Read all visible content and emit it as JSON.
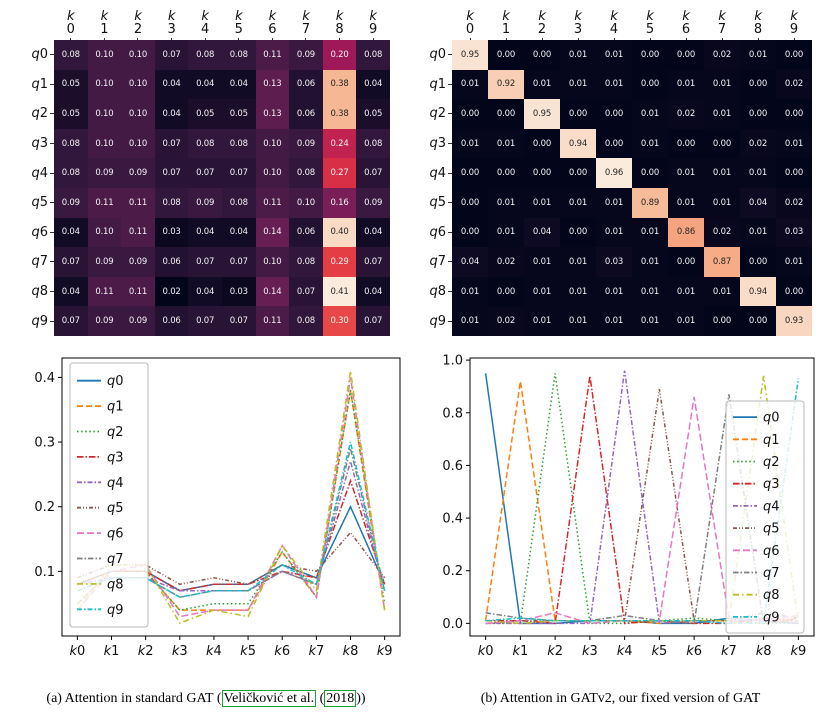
{
  "captions": {
    "a": {
      "prefix": "(a) Attention in standard GAT (",
      "link1": "Veličković et al.",
      "mid": " (",
      "link2": "2018",
      "suffix": "))"
    },
    "b": "(b) Attention in GATv2, our fixed version of GAT"
  },
  "colors": {
    "citation_box": "#17a336",
    "heatmap_low": "#03051a",
    "heatmap_high": "#faebdd"
  },
  "series_styles": [
    {
      "name": "q0",
      "color": "#1f77b4",
      "dash": ""
    },
    {
      "name": "q1",
      "color": "#ff7f0e",
      "dash": "6,3"
    },
    {
      "name": "q2",
      "color": "#2ca02c",
      "dash": "1.5,2.6"
    },
    {
      "name": "q3",
      "color": "#d62728",
      "dash": "6.5,2,1.5,2"
    },
    {
      "name": "q4",
      "color": "#9467bd",
      "dash": "5,2,1.5,2"
    },
    {
      "name": "q5",
      "color": "#8c564b",
      "dash": "4,2,1,2,1,2"
    },
    {
      "name": "q6",
      "color": "#e377c2",
      "dash": "7,3"
    },
    {
      "name": "q7",
      "color": "#7f7f7f",
      "dash": "5.5,2,1.5,2"
    },
    {
      "name": "q8",
      "color": "#bcbd22",
      "dash": "6,3,1.5,3"
    },
    {
      "name": "q9",
      "color": "#17becf",
      "dash": "5,2,1.5,2"
    }
  ],
  "chart_data": [
    {
      "id": "gat-heatmap",
      "type": "heatmap",
      "colormap": "rocket",
      "x_labels": [
        "k0",
        "k1",
        "k2",
        "k3",
        "k4",
        "k5",
        "k6",
        "k7",
        "k8",
        "k9"
      ],
      "y_labels": [
        "q0",
        "q1",
        "q2",
        "q3",
        "q4",
        "q5",
        "q6",
        "q7",
        "q8",
        "q9"
      ],
      "values": [
        [
          0.08,
          0.1,
          0.1,
          0.07,
          0.08,
          0.08,
          0.11,
          0.09,
          0.2,
          0.08
        ],
        [
          0.05,
          0.1,
          0.1,
          0.04,
          0.04,
          0.04,
          0.13,
          0.06,
          0.38,
          0.04
        ],
        [
          0.05,
          0.1,
          0.1,
          0.04,
          0.05,
          0.05,
          0.13,
          0.06,
          0.38,
          0.05
        ],
        [
          0.08,
          0.1,
          0.1,
          0.07,
          0.08,
          0.08,
          0.1,
          0.09,
          0.24,
          0.08
        ],
        [
          0.08,
          0.09,
          0.09,
          0.07,
          0.07,
          0.07,
          0.1,
          0.08,
          0.27,
          0.07
        ],
        [
          0.09,
          0.11,
          0.11,
          0.08,
          0.09,
          0.08,
          0.11,
          0.1,
          0.16,
          0.09
        ],
        [
          0.04,
          0.1,
          0.11,
          0.03,
          0.04,
          0.04,
          0.14,
          0.06,
          0.4,
          0.04
        ],
        [
          0.07,
          0.09,
          0.09,
          0.06,
          0.07,
          0.07,
          0.1,
          0.08,
          0.29,
          0.07
        ],
        [
          0.04,
          0.11,
          0.11,
          0.02,
          0.04,
          0.03,
          0.14,
          0.07,
          0.41,
          0.04
        ],
        [
          0.07,
          0.09,
          0.09,
          0.06,
          0.07,
          0.07,
          0.11,
          0.08,
          0.3,
          0.07
        ]
      ]
    },
    {
      "id": "gatv2-heatmap",
      "type": "heatmap",
      "colormap": "rocket",
      "x_labels": [
        "k0",
        "k1",
        "k2",
        "k3",
        "k4",
        "k5",
        "k6",
        "k7",
        "k8",
        "k9"
      ],
      "y_labels": [
        "q0",
        "q1",
        "q2",
        "q3",
        "q4",
        "q5",
        "q6",
        "q7",
        "q8",
        "q9"
      ],
      "values": [
        [
          0.95,
          0.0,
          0.0,
          0.01,
          0.01,
          0.0,
          0.0,
          0.02,
          0.01,
          0.0
        ],
        [
          0.01,
          0.92,
          0.01,
          0.01,
          0.01,
          0.0,
          0.01,
          0.01,
          0.0,
          0.02
        ],
        [
          0.0,
          0.0,
          0.95,
          0.0,
          0.0,
          0.01,
          0.02,
          0.01,
          0.0,
          0.0
        ],
        [
          0.01,
          0.01,
          0.0,
          0.94,
          0.0,
          0.01,
          0.0,
          0.0,
          0.02,
          0.01
        ],
        [
          0.0,
          0.0,
          0.0,
          0.0,
          0.96,
          0.0,
          0.01,
          0.01,
          0.01,
          0.0
        ],
        [
          0.0,
          0.01,
          0.01,
          0.01,
          0.01,
          0.89,
          0.01,
          0.01,
          0.04,
          0.02
        ],
        [
          0.0,
          0.01,
          0.04,
          0.0,
          0.01,
          0.01,
          0.86,
          0.02,
          0.01,
          0.03
        ],
        [
          0.04,
          0.02,
          0.01,
          0.01,
          0.03,
          0.01,
          0.0,
          0.87,
          0.0,
          0.01
        ],
        [
          0.01,
          0.0,
          0.01,
          0.01,
          0.01,
          0.01,
          0.01,
          0.01,
          0.94,
          0.0
        ],
        [
          0.01,
          0.02,
          0.01,
          0.01,
          0.01,
          0.01,
          0.01,
          0.0,
          0.0,
          0.93
        ]
      ]
    },
    {
      "id": "gat-lines",
      "type": "line",
      "x": [
        "k0",
        "k1",
        "k2",
        "k3",
        "k4",
        "k5",
        "k6",
        "k7",
        "k8",
        "k9"
      ],
      "series_from": "gat-heatmap",
      "ylim": [
        0.0,
        0.43
      ],
      "yticks": [
        0.1,
        0.2,
        0.3,
        0.4
      ],
      "legend": {
        "pos": "upper-left",
        "entry_h": 25.4
      }
    },
    {
      "id": "gatv2-lines",
      "type": "line",
      "x": [
        "k0",
        "k1",
        "k2",
        "k3",
        "k4",
        "k5",
        "k6",
        "k7",
        "k8",
        "k9"
      ],
      "series_from": "gatv2-heatmap",
      "ylim": [
        -0.048,
        1.008
      ],
      "yticks": [
        0.0,
        0.2,
        0.4,
        0.6,
        0.8,
        1.0
      ],
      "legend": {
        "pos": "right",
        "entry_h": 22.2
      }
    }
  ]
}
